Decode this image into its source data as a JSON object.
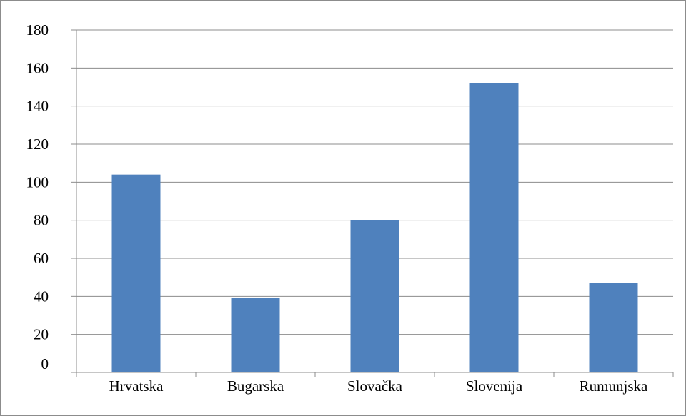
{
  "chart_data": {
    "type": "bar",
    "categories": [
      "Hrvatska",
      "Bugarska",
      "Slovačka",
      "Slovenija",
      "Rumunjska"
    ],
    "values": [
      104,
      39,
      80,
      152,
      47
    ],
    "ylim": [
      0,
      180
    ],
    "yticks": [
      0,
      20,
      40,
      60,
      80,
      100,
      120,
      140,
      160,
      180
    ],
    "grid": true,
    "legend": "none",
    "bar_color": "#4f81bd",
    "title": "",
    "xlabel": "",
    "ylabel": ""
  }
}
